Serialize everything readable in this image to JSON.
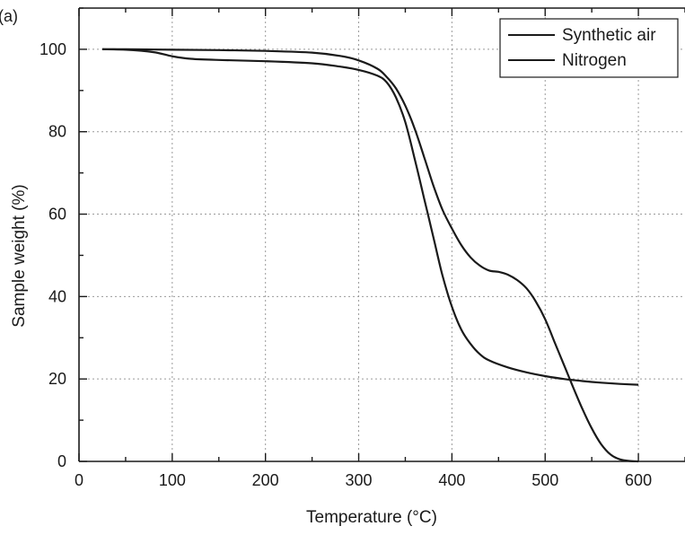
{
  "panel_label": "(a)",
  "chart_data": {
    "type": "line",
    "xlabel": "Temperature (°C)",
    "ylabel": "Sample weight (%)",
    "xlim": [
      0,
      650
    ],
    "ylim": [
      0,
      110
    ],
    "xticks": [
      0,
      100,
      200,
      300,
      400,
      500,
      600
    ],
    "yticks": [
      0,
      20,
      40,
      60,
      80,
      100
    ],
    "grid": true,
    "legend_position": "top-right",
    "colors": {
      "line": "#1a1a1a",
      "grid": "#9a9a9a",
      "axis": "#1a1a1a"
    },
    "legend": [
      "Synthetic air",
      "Nitrogen"
    ],
    "series": [
      {
        "name": "Synthetic air",
        "x": [
          25,
          50,
          100,
          150,
          200,
          250,
          280,
          300,
          320,
          330,
          340,
          350,
          360,
          370,
          380,
          390,
          400,
          410,
          420,
          430,
          440,
          450,
          460,
          470,
          480,
          490,
          500,
          510,
          520,
          530,
          540,
          550,
          560,
          570,
          580,
          590,
          600
        ],
        "y": [
          100,
          100,
          99.9,
          99.8,
          99.6,
          99.2,
          98.4,
          97.3,
          95.3,
          93.3,
          90.5,
          86.3,
          80.8,
          74.0,
          67.0,
          61.0,
          56.5,
          52.5,
          49.5,
          47.5,
          46.3,
          46.0,
          45.3,
          44.0,
          42.0,
          38.8,
          34.5,
          29.0,
          23.5,
          18.0,
          12.7,
          8.0,
          4.2,
          1.7,
          0.5,
          0.1,
          0.0
        ]
      },
      {
        "name": "Nitrogen",
        "x": [
          25,
          50,
          80,
          100,
          120,
          150,
          200,
          250,
          280,
          300,
          320,
          330,
          340,
          350,
          360,
          370,
          380,
          390,
          400,
          410,
          420,
          430,
          440,
          460,
          480,
          500,
          520,
          540,
          560,
          580,
          600
        ],
        "y": [
          100,
          99.9,
          99.3,
          98.3,
          97.7,
          97.4,
          97.1,
          96.6,
          95.8,
          95.0,
          93.6,
          92.0,
          88.3,
          82.3,
          73.5,
          64.0,
          54.5,
          45.0,
          37.5,
          32.0,
          28.5,
          26.0,
          24.5,
          22.8,
          21.6,
          20.7,
          20.0,
          19.5,
          19.1,
          18.8,
          18.6
        ]
      }
    ]
  }
}
